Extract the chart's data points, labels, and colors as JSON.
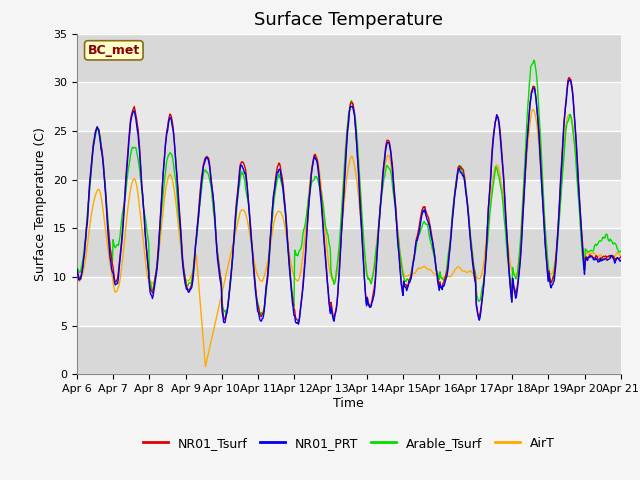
{
  "title": "Surface Temperature",
  "ylabel": "Surface Temperature (C)",
  "xlabel": "Time",
  "annotation_label": "BC_met",
  "legend_labels": [
    "NR01_Tsurf",
    "NR01_PRT",
    "Arable_Tsurf",
    "AirT"
  ],
  "line_colors": [
    "#dd0000",
    "#0000ee",
    "#00dd00",
    "#ffaa00"
  ],
  "ylim": [
    0,
    35
  ],
  "yticks": [
    0,
    5,
    10,
    15,
    20,
    25,
    30,
    35
  ],
  "bg_color": "#e8e8e8",
  "fig_bg_color": "#f5f5f5",
  "grid_color": "#ffffff",
  "xtick_labels": [
    "Apr 6",
    "Apr 7",
    "Apr 8",
    "Apr 9",
    "Apr 10",
    "Apr 11",
    "Apr 12",
    "Apr 13",
    "Apr 14",
    "Apr 15",
    "Apr 16",
    "Apr 17",
    "Apr 18",
    "Apr 19",
    "Apr 20",
    "Apr 21"
  ],
  "title_fontsize": 13,
  "label_fontsize": 9,
  "tick_fontsize": 8,
  "legend_fontsize": 9
}
